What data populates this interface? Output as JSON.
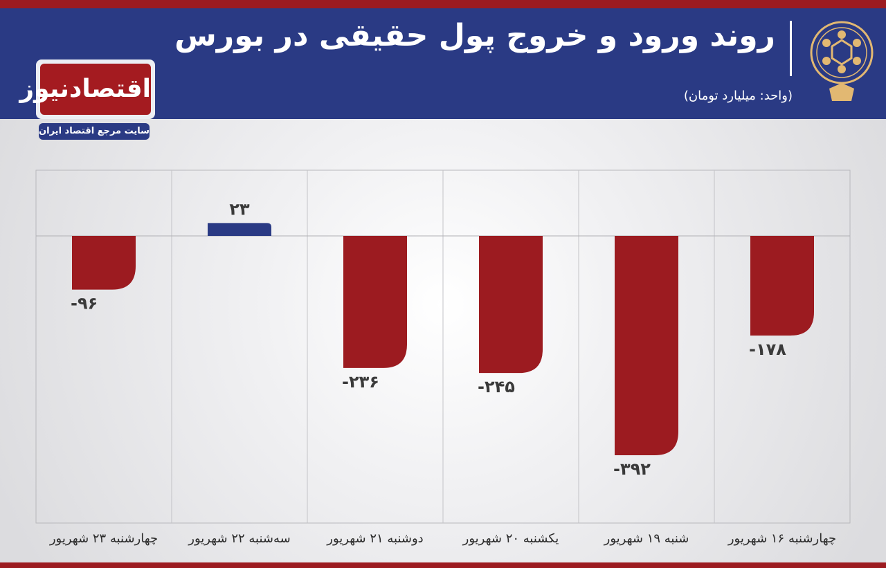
{
  "header": {
    "title": "روند ورود و خروج پول حقیقی در بورس",
    "unit": "(واحد: میلیارد تومان)"
  },
  "brand": {
    "name": "اقتصادنیوز",
    "tagline": "سایت مرجع اقتصاد ایران"
  },
  "colors": {
    "negative": "#9c1b20",
    "positive": "#2a3a84",
    "header_bg": "#2a3a84",
    "accent_red": "#9c1b20"
  },
  "chart_data": {
    "type": "bar",
    "categories": [
      "چهارشنبه ۱۶ شهریور",
      "شنبه ۱۹ شهریور",
      "یکشنبه ۲۰ شهریور",
      "دوشنبه ۲۱ شهریور",
      "سه‌شنبه ۲۲ شهریور",
      "چهارشنبه ۲۳ شهریور"
    ],
    "values": [
      -178,
      -392,
      -245,
      -236,
      23,
      -96
    ],
    "data_labels": [
      "-۱۷۸",
      "-۳۹۲",
      "-۲۴۵",
      "-۲۳۶",
      "۲۳",
      "-۹۶"
    ],
    "title": "روند ورود و خروج پول حقیقی در بورس",
    "ylabel": "",
    "xlabel": "",
    "ylim": [
      -392,
      150
    ],
    "category_order": "right-to-left",
    "grid": true,
    "legend": "none"
  }
}
